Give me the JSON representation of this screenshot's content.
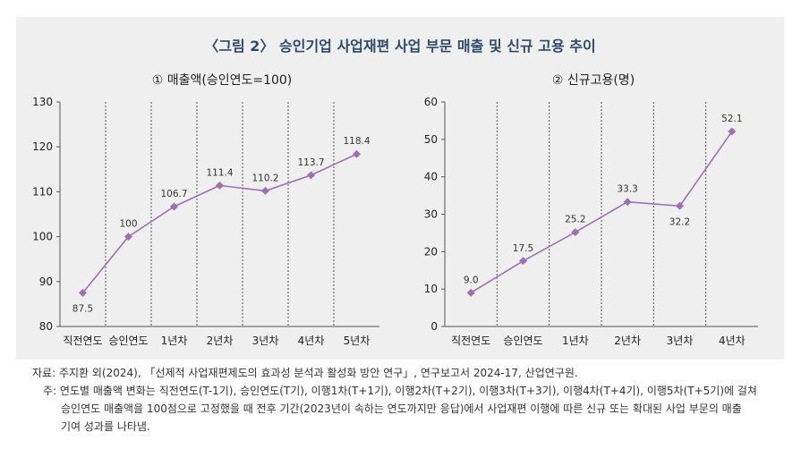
{
  "title": "〈그림 2〉 승인기업 사업재편 사업 부문 매출 및 신규 고용 추이",
  "source_line": "자료: 주지환 외(2024), 「선제적 사업재편제도의 효과성 분석과 활성화 방안 연구」, 연구보고서 2024-17, 산업연구원.",
  "note_lines": [
    "주: 연도별 매출액 변화는 직전연도(T-1기), 승인연도(T기), 이행1차(T+1기), 이행2차(T+2기), 이행3차(T+3기), 이행4차(T+4기), 이행5차(T+5기)에 걸쳐",
    "승인연도 매출액을 100점으로 고정했을 때 전후 기간(2023년이 속하는 연도까지만 응답)에서 사업재편 이행에 따른 신규 또는 확대된 사업 부문의 매출",
    "기여 성과를 나타냄."
  ],
  "colors": {
    "line": "#a06fb2",
    "marker": "#a06fb2",
    "title": "#2e4a6b",
    "panel": "#efefef"
  },
  "chart_data": [
    {
      "type": "line",
      "title": "① 매출액(승인연도=100)",
      "categories": [
        "직전연도",
        "승인연도",
        "1년차",
        "2년차",
        "3년차",
        "4년차",
        "5년차"
      ],
      "values": [
        87.5,
        100,
        106.7,
        111.4,
        110.2,
        113.7,
        118.4
      ],
      "labels": [
        "87.5",
        "100",
        "106.7",
        "111.4",
        "110.2",
        "113.7",
        "118.4"
      ],
      "label_below": [
        true,
        false,
        false,
        false,
        false,
        false,
        false
      ],
      "ylim": [
        80,
        130
      ],
      "yticks": [
        "80",
        "90",
        "100",
        "110",
        "120",
        "130"
      ],
      "xlabel": "",
      "ylabel": "",
      "grid": "vertical dashed"
    },
    {
      "type": "line",
      "title": "② 신규고용(명)",
      "categories": [
        "직전연도",
        "승인연도",
        "1년차",
        "2년차",
        "3년차",
        "4년차"
      ],
      "values": [
        9.0,
        17.5,
        25.2,
        33.3,
        32.2,
        52.1
      ],
      "labels": [
        "9.0",
        "17.5",
        "25.2",
        "33.3",
        "32.2",
        "52.1"
      ],
      "label_below": [
        false,
        false,
        false,
        false,
        true,
        false
      ],
      "ylim": [
        0,
        60
      ],
      "yticks": [
        "0",
        "10",
        "20",
        "30",
        "40",
        "50",
        "60"
      ],
      "xlabel": "",
      "ylabel": "",
      "grid": "vertical dashed"
    }
  ]
}
